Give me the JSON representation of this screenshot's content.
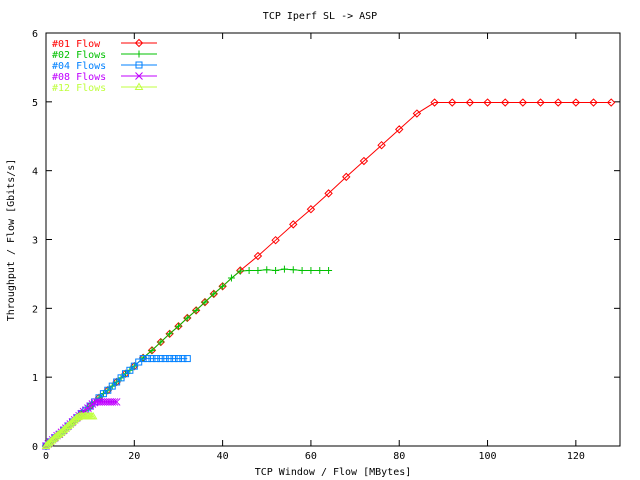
{
  "chart_data": {
    "type": "line",
    "title": "TCP Iperf SL -> ASP",
    "xlabel": "TCP Window / Flow [MBytes]",
    "ylabel": "Throughput / Flow [Gbits/s]",
    "xlim": [
      0,
      130
    ],
    "ylim": [
      0,
      6
    ],
    "x_ticks": [
      0,
      20,
      40,
      60,
      80,
      100,
      120
    ],
    "y_ticks": [
      0,
      1,
      2,
      3,
      4,
      5,
      6
    ],
    "grid": false,
    "legend_position": "top-left",
    "series": [
      {
        "name": "#01 Flow",
        "color": "#ff0000",
        "marker": "diamond",
        "x": [
          0,
          2,
          4,
          6,
          8,
          10,
          12,
          14,
          16,
          18,
          20,
          22,
          24,
          26,
          28,
          30,
          32,
          34,
          36,
          38,
          40,
          44,
          48,
          52,
          56,
          60,
          64,
          68,
          72,
          76,
          80,
          84,
          88,
          92,
          96,
          100,
          104,
          108,
          112,
          116,
          120,
          124,
          128
        ],
        "y": [
          0,
          0.12,
          0.23,
          0.35,
          0.47,
          0.58,
          0.7,
          0.81,
          0.93,
          1.05,
          1.16,
          1.28,
          1.39,
          1.51,
          1.63,
          1.74,
          1.86,
          1.97,
          2.09,
          2.21,
          2.32,
          2.55,
          2.76,
          2.99,
          3.22,
          3.44,
          3.67,
          3.91,
          4.14,
          4.37,
          4.6,
          4.83,
          4.99,
          4.99,
          4.99,
          4.99,
          4.99,
          4.99,
          4.99,
          4.99,
          4.99,
          4.99,
          4.99
        ]
      },
      {
        "name": "#02 Flows",
        "color": "#00c000",
        "marker": "plus",
        "x": [
          0,
          1,
          2,
          3,
          4,
          5,
          6,
          7,
          8,
          9,
          10,
          11,
          12,
          13,
          14,
          15,
          16,
          17,
          18,
          19,
          20,
          22,
          24,
          26,
          28,
          30,
          32,
          34,
          36,
          38,
          40,
          42,
          44,
          46,
          48,
          50,
          52,
          54,
          56,
          58,
          60,
          62,
          64
        ],
        "y": [
          0,
          0.06,
          0.12,
          0.17,
          0.23,
          0.29,
          0.35,
          0.41,
          0.47,
          0.52,
          0.58,
          0.64,
          0.7,
          0.76,
          0.81,
          0.87,
          0.93,
          0.99,
          1.05,
          1.1,
          1.16,
          1.28,
          1.39,
          1.51,
          1.63,
          1.74,
          1.86,
          1.97,
          2.09,
          2.21,
          2.32,
          2.44,
          2.54,
          2.55,
          2.55,
          2.56,
          2.55,
          2.57,
          2.56,
          2.55,
          2.55,
          2.55,
          2.55
        ]
      },
      {
        "name": "#04 Flows",
        "color": "#0080ff",
        "marker": "square",
        "x": [
          0,
          1,
          2,
          3,
          4,
          5,
          6,
          7,
          8,
          9,
          10,
          11,
          12,
          13,
          14,
          15,
          16,
          17,
          18,
          19,
          20,
          21,
          22,
          23,
          24,
          25,
          26,
          27,
          28,
          29,
          30,
          31,
          32
        ],
        "y": [
          0,
          0.06,
          0.12,
          0.17,
          0.23,
          0.29,
          0.35,
          0.41,
          0.47,
          0.52,
          0.58,
          0.64,
          0.7,
          0.76,
          0.81,
          0.87,
          0.93,
          0.99,
          1.05,
          1.1,
          1.16,
          1.22,
          1.27,
          1.27,
          1.27,
          1.27,
          1.27,
          1.27,
          1.27,
          1.27,
          1.27,
          1.27,
          1.27
        ]
      },
      {
        "name": "#08 Flows",
        "color": "#c000ff",
        "marker": "cross",
        "x": [
          0,
          0.5,
          1,
          1.5,
          2,
          2.5,
          3,
          3.5,
          4,
          4.5,
          5,
          5.5,
          6,
          6.5,
          7,
          7.5,
          8,
          8.5,
          9,
          9.5,
          10,
          10.5,
          11,
          11.5,
          12,
          12.5,
          13,
          13.5,
          14,
          14.5,
          15,
          15.5,
          16
        ],
        "y": [
          0,
          0.03,
          0.06,
          0.09,
          0.12,
          0.15,
          0.17,
          0.2,
          0.23,
          0.26,
          0.29,
          0.32,
          0.35,
          0.38,
          0.41,
          0.44,
          0.47,
          0.5,
          0.52,
          0.55,
          0.58,
          0.61,
          0.63,
          0.64,
          0.64,
          0.64,
          0.64,
          0.64,
          0.64,
          0.64,
          0.64,
          0.64,
          0.64
        ]
      },
      {
        "name": "#12 Flows",
        "color": "#c0ff40",
        "marker": "triangle",
        "x": [
          0,
          0.33,
          0.67,
          1,
          1.33,
          1.67,
          2,
          2.33,
          2.67,
          3,
          3.33,
          3.67,
          4,
          4.33,
          4.67,
          5,
          5.33,
          5.67,
          6,
          6.33,
          6.67,
          7,
          7.33,
          7.67,
          8,
          8.33,
          8.67,
          9,
          9.33,
          9.67,
          10,
          10.33,
          10.67
        ],
        "y": [
          0,
          0.02,
          0.04,
          0.06,
          0.08,
          0.1,
          0.12,
          0.14,
          0.16,
          0.17,
          0.19,
          0.21,
          0.23,
          0.25,
          0.27,
          0.29,
          0.31,
          0.33,
          0.35,
          0.37,
          0.39,
          0.41,
          0.42,
          0.43,
          0.43,
          0.43,
          0.43,
          0.43,
          0.43,
          0.43,
          0.43,
          0.43,
          0.43
        ]
      }
    ]
  }
}
